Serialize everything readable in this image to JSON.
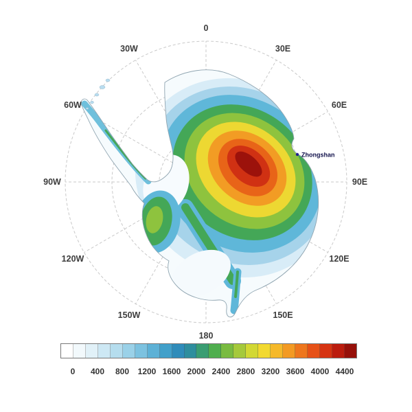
{
  "map": {
    "meridian_labels": [
      "0",
      "30E",
      "60E",
      "90E",
      "120E",
      "150E",
      "180",
      "150W",
      "120W",
      "90W",
      "60W",
      "30W"
    ],
    "station": {
      "name": "Zhongshan",
      "marker_color": "#22228e"
    },
    "graticule_color": "#c9c9c9"
  },
  "colorbar": {
    "tick_labels": [
      "0",
      "400",
      "800",
      "1200",
      "1600",
      "2000",
      "2400",
      "2800",
      "3200",
      "3600",
      "4000",
      "4400"
    ],
    "colors": [
      "#ffffff",
      "#f2f9fc",
      "#e1f1f8",
      "#cde8f4",
      "#b5ddee",
      "#9ad1e8",
      "#7cc2e0",
      "#5db1d6",
      "#41a0ca",
      "#2f8cba",
      "#2e8e9e",
      "#3a9d72",
      "#4fae4e",
      "#79bb40",
      "#a5c93b",
      "#d2d834",
      "#f2d930",
      "#f5b92a",
      "#f39a23",
      "#ee761d",
      "#e65117",
      "#d63312",
      "#bb1c0e",
      "#96100a"
    ]
  }
}
